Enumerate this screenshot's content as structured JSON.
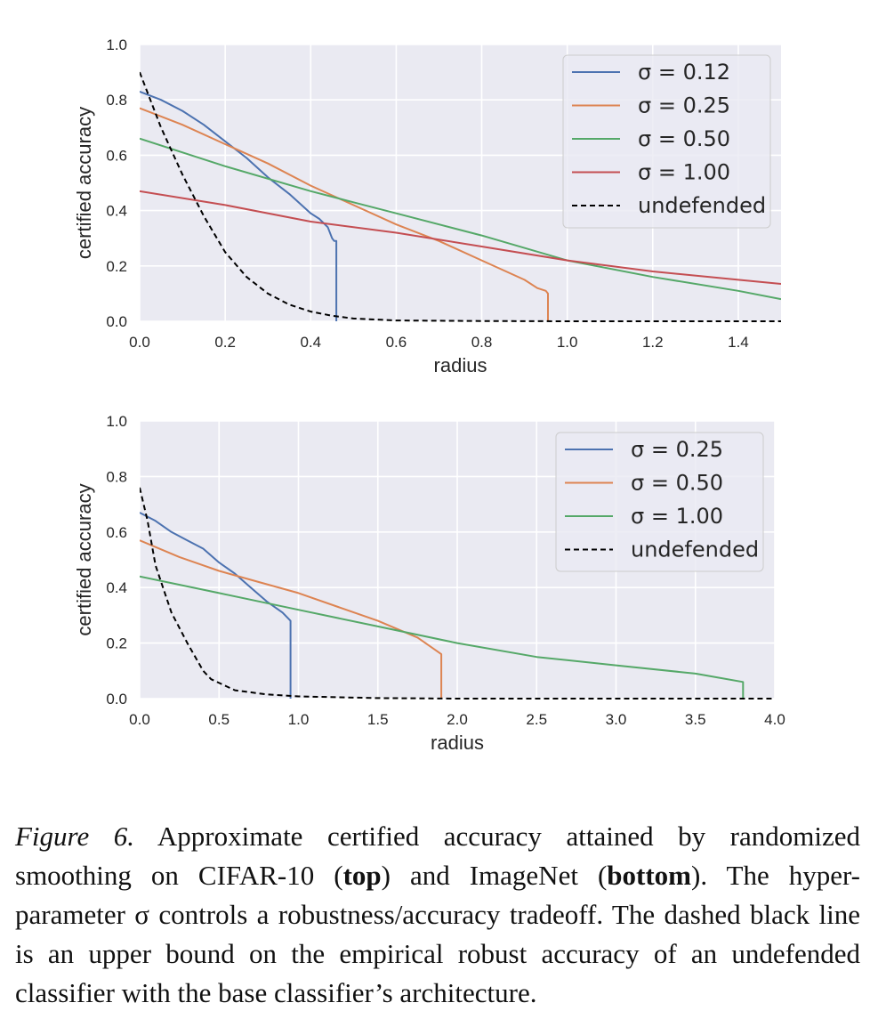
{
  "charts": {
    "chart_data": [
      {
        "type": "line",
        "name": "CIFAR-10",
        "xlabel": "radius",
        "ylabel": "certified accuracy",
        "xlim": [
          0,
          1.5
        ],
        "ylim": [
          0,
          1.0
        ],
        "xticks": [
          "0.0",
          "0.2",
          "0.4",
          "0.6",
          "0.8",
          "1.0",
          "1.2",
          "1.4"
        ],
        "yticks": [
          "0.0",
          "0.2",
          "0.4",
          "0.6",
          "0.8",
          "1.0"
        ],
        "grid": true,
        "legend_position": "top-right",
        "series": [
          {
            "name": "σ = 0.12",
            "color": "#4C72B0",
            "dash": false,
            "x": [
              0,
              0.05,
              0.1,
              0.15,
              0.2,
              0.25,
              0.3,
              0.35,
              0.4,
              0.42,
              0.44,
              0.45,
              0.455,
              0.46,
              0.46
            ],
            "y": [
              0.83,
              0.8,
              0.76,
              0.71,
              0.65,
              0.59,
              0.52,
              0.46,
              0.39,
              0.37,
              0.34,
              0.3,
              0.29,
              0.29,
              0.0
            ]
          },
          {
            "name": "σ = 0.25",
            "color": "#DD8452",
            "dash": false,
            "x": [
              0,
              0.1,
              0.2,
              0.3,
              0.4,
              0.5,
              0.6,
              0.7,
              0.8,
              0.9,
              0.93,
              0.95,
              0.955,
              0.955
            ],
            "y": [
              0.77,
              0.71,
              0.64,
              0.57,
              0.49,
              0.42,
              0.35,
              0.29,
              0.22,
              0.15,
              0.12,
              0.11,
              0.1,
              0.0
            ]
          },
          {
            "name": "σ = 0.50",
            "color": "#55A868",
            "dash": false,
            "x": [
              0,
              0.2,
              0.4,
              0.5,
              0.6,
              0.8,
              1.0,
              1.2,
              1.4,
              1.5
            ],
            "y": [
              0.66,
              0.56,
              0.47,
              0.43,
              0.39,
              0.31,
              0.22,
              0.16,
              0.11,
              0.08
            ]
          },
          {
            "name": "σ = 1.00",
            "color": "#C44E52",
            "dash": false,
            "x": [
              0,
              0.2,
              0.4,
              0.6,
              0.8,
              1.0,
              1.2,
              1.4,
              1.5
            ],
            "y": [
              0.47,
              0.42,
              0.36,
              0.32,
              0.27,
              0.22,
              0.18,
              0.15,
              0.135
            ]
          },
          {
            "name": "undefended",
            "color": "#000000",
            "dash": true,
            "x": [
              0,
              0.05,
              0.1,
              0.15,
              0.2,
              0.25,
              0.3,
              0.35,
              0.4,
              0.45,
              0.5,
              0.6,
              0.8,
              1.0,
              1.5
            ],
            "y": [
              0.9,
              0.7,
              0.53,
              0.38,
              0.25,
              0.16,
              0.1,
              0.06,
              0.035,
              0.02,
              0.01,
              0.003,
              0.001,
              0.0,
              0.0
            ]
          }
        ]
      },
      {
        "type": "line",
        "name": "ImageNet",
        "xlabel": "radius",
        "ylabel": "certified accuracy",
        "xlim": [
          0,
          4.0
        ],
        "ylim": [
          0,
          1.0
        ],
        "xticks": [
          "0.0",
          "0.5",
          "1.0",
          "1.5",
          "2.0",
          "2.5",
          "3.0",
          "3.5",
          "4.0"
        ],
        "yticks": [
          "0.0",
          "0.2",
          "0.4",
          "0.6",
          "0.8",
          "1.0"
        ],
        "grid": true,
        "legend_position": "top-right",
        "series": [
          {
            "name": "σ = 0.25",
            "color": "#4C72B0",
            "dash": false,
            "x": [
              0,
              0.1,
              0.2,
              0.3,
              0.4,
              0.5,
              0.6,
              0.7,
              0.8,
              0.9,
              0.95,
              0.95
            ],
            "y": [
              0.67,
              0.64,
              0.6,
              0.57,
              0.54,
              0.49,
              0.45,
              0.4,
              0.35,
              0.31,
              0.28,
              0.0
            ]
          },
          {
            "name": "σ = 0.50",
            "color": "#DD8452",
            "dash": false,
            "x": [
              0,
              0.25,
              0.5,
              0.75,
              1.0,
              1.25,
              1.5,
              1.75,
              1.85,
              1.9,
              1.9
            ],
            "y": [
              0.57,
              0.51,
              0.46,
              0.42,
              0.38,
              0.33,
              0.28,
              0.22,
              0.18,
              0.16,
              0.0
            ]
          },
          {
            "name": "σ = 1.00",
            "color": "#55A868",
            "dash": false,
            "x": [
              0,
              0.5,
              1.0,
              1.5,
              2.0,
              2.5,
              3.0,
              3.5,
              3.8,
              3.8
            ],
            "y": [
              0.44,
              0.38,
              0.32,
              0.26,
              0.2,
              0.15,
              0.12,
              0.09,
              0.06,
              0.0
            ]
          },
          {
            "name": "undefended",
            "color": "#000000",
            "dash": true,
            "x": [
              0,
              0.05,
              0.1,
              0.2,
              0.3,
              0.4,
              0.45,
              0.6,
              0.8,
              1.0,
              1.5,
              2.0,
              4.0
            ],
            "y": [
              0.76,
              0.64,
              0.48,
              0.31,
              0.2,
              0.1,
              0.07,
              0.03,
              0.015,
              0.008,
              0.002,
              0.0,
              0.0
            ]
          }
        ]
      }
    ]
  },
  "caption": {
    "label": "Figure 6.",
    "t1": " Approximate certified accuracy attained by randomized smoothing on CIFAR-10 (",
    "b1": "top",
    "t2": ") and ImageNet (",
    "b2": "bottom",
    "t3": "). The hyper-parameter σ controls a robustness/accuracy tradeoff. The dashed black line is an upper bound on the empirical robust accuracy of an undefended classifier with the base classifier’s architecture."
  }
}
